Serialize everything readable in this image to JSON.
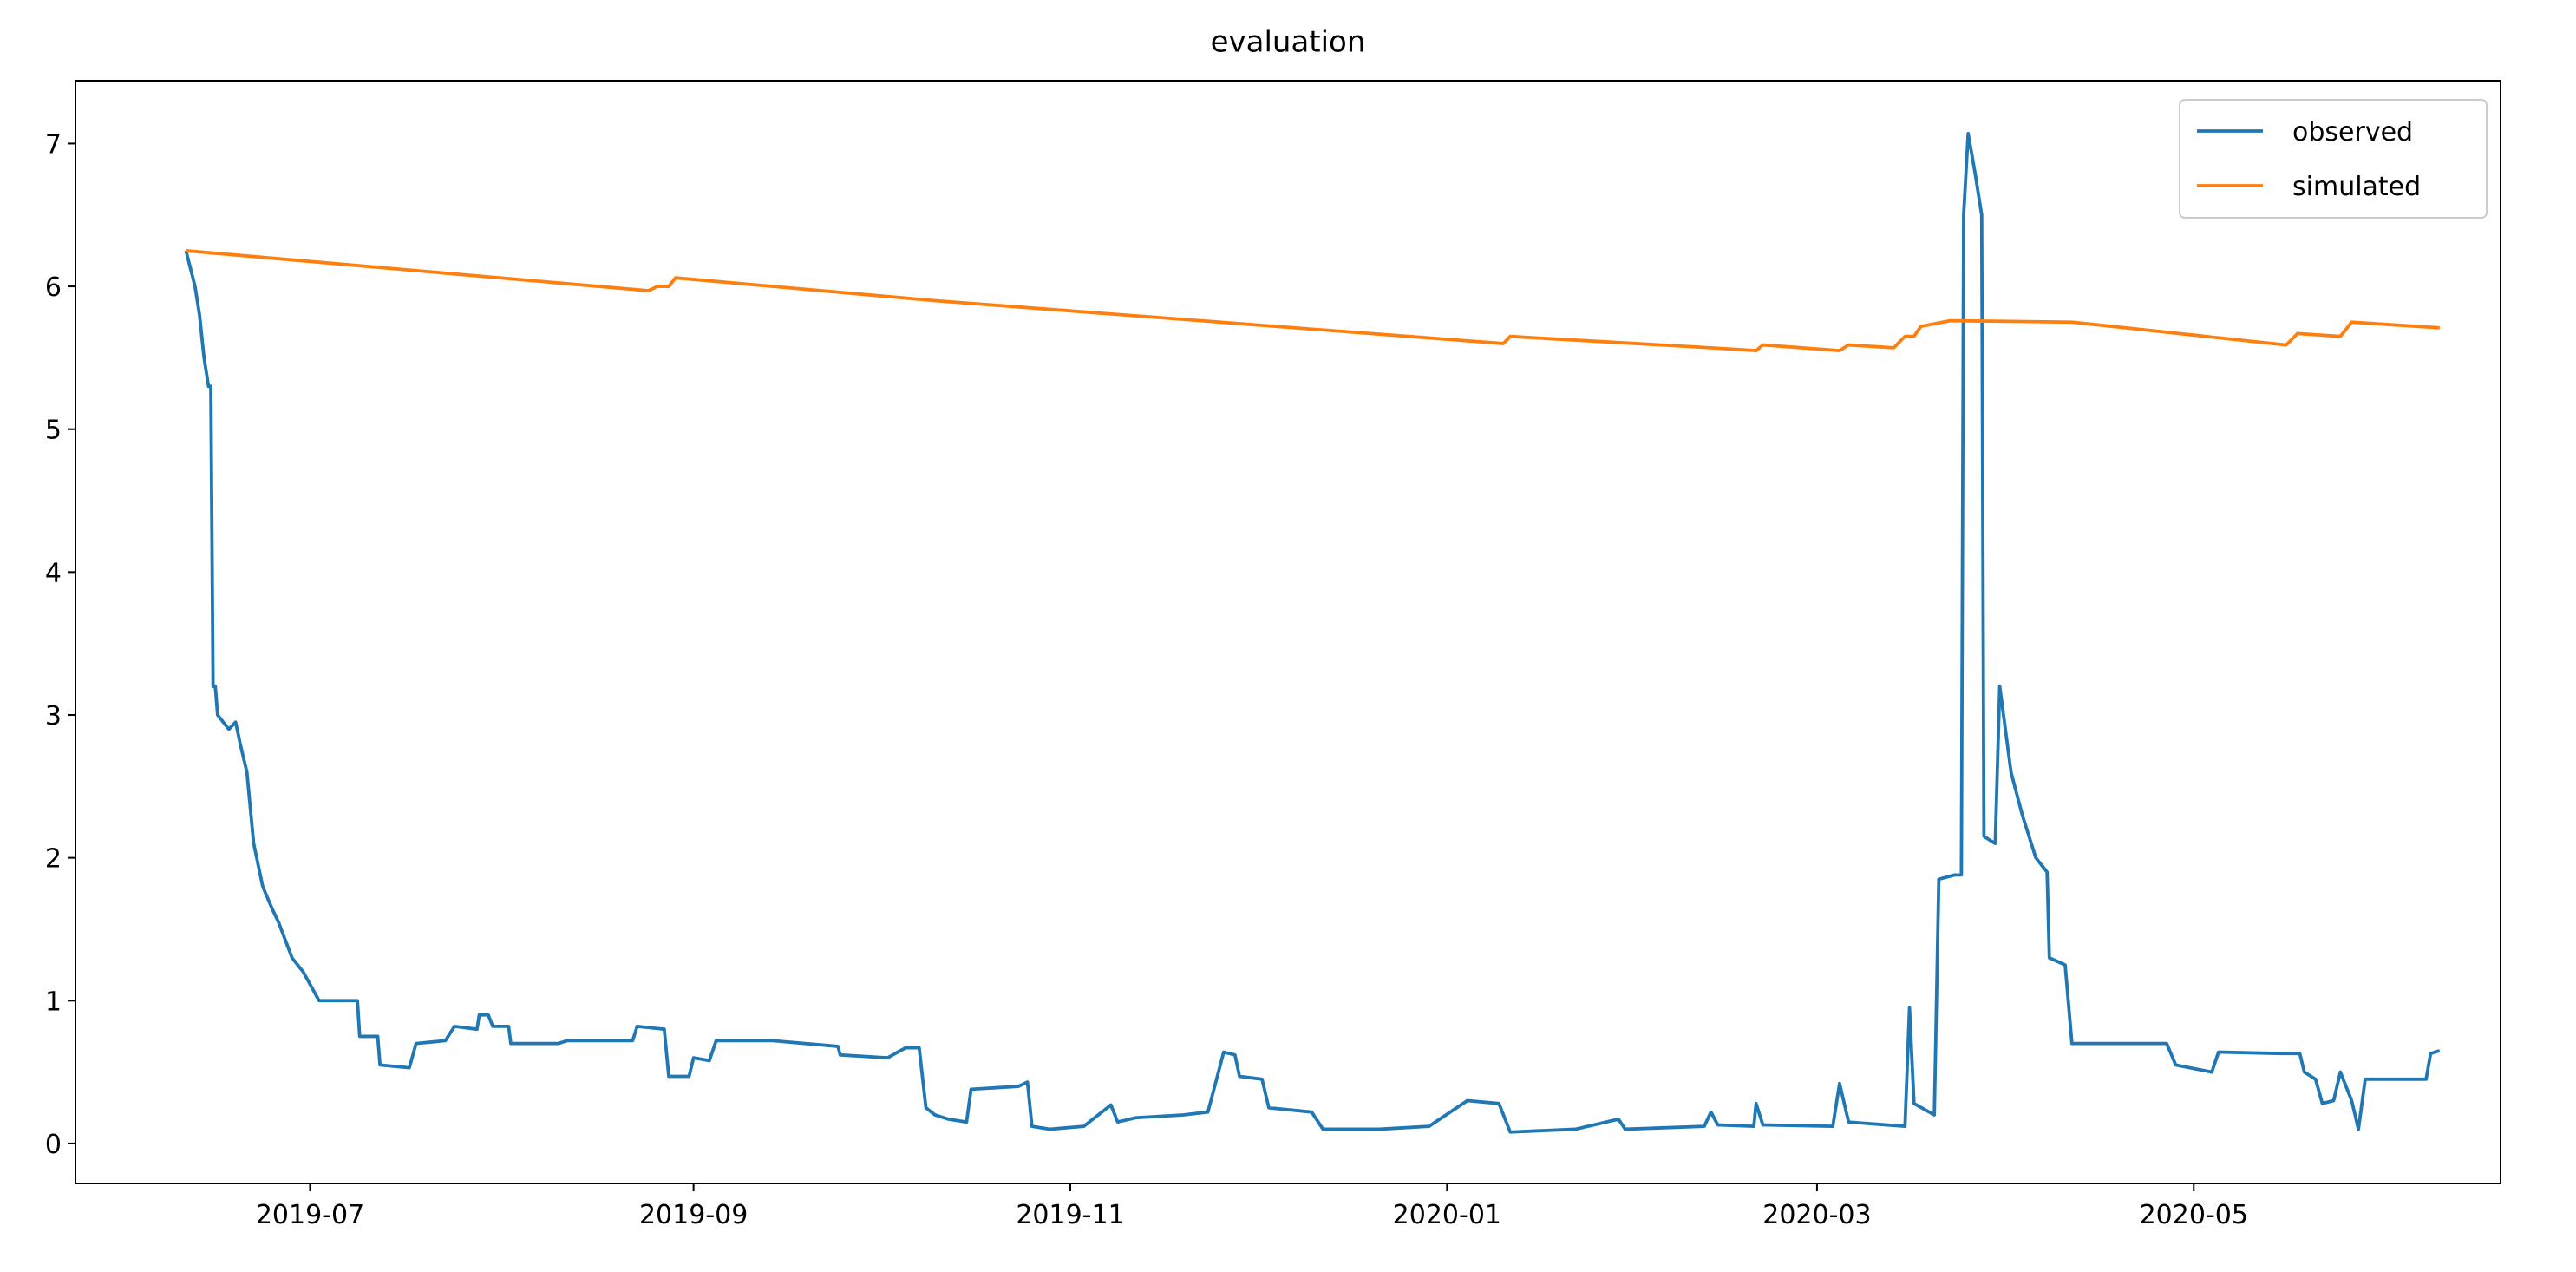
{
  "chart_data": {
    "type": "line",
    "title": "evaluation",
    "xlim": [
      2019.392,
      2020.467
    ],
    "ylim": [
      -0.28,
      7.44
    ],
    "xticks": [
      {
        "value": 2019.496,
        "label": "2019-07"
      },
      {
        "value": 2019.666,
        "label": "2019-09"
      },
      {
        "value": 2019.833,
        "label": "2019-11"
      },
      {
        "value": 2020.0,
        "label": "2020-01"
      },
      {
        "value": 2020.164,
        "label": "2020-03"
      },
      {
        "value": 2020.331,
        "label": "2020-05"
      }
    ],
    "yticks": [
      0,
      1,
      2,
      3,
      4,
      5,
      6,
      7
    ],
    "grid": false,
    "legend": "upper right",
    "series": [
      {
        "name": "observed",
        "color": "#1f77b4",
        "x": [
          2019.441,
          2019.445,
          2019.447,
          2019.449,
          2019.451,
          2019.452,
          2019.453,
          2019.454,
          2019.455,
          2019.46,
          2019.463,
          2019.465,
          2019.468,
          2019.471,
          2019.475,
          2019.479,
          2019.482,
          2019.488,
          2019.493,
          2019.5,
          2019.517,
          2019.518,
          2019.526,
          2019.527,
          2019.54,
          2019.543,
          2019.556,
          2019.56,
          2019.57,
          2019.571,
          2019.575,
          2019.577,
          2019.584,
          2019.585,
          2019.606,
          2019.61,
          2019.639,
          2019.641,
          2019.653,
          2019.655,
          2019.664,
          2019.666,
          2019.673,
          2019.676,
          2019.701,
          2019.73,
          2019.731,
          2019.752,
          2019.76,
          2019.766,
          2019.769,
          2019.773,
          2019.779,
          2019.787,
          2019.789,
          2019.81,
          2019.814,
          2019.816,
          2019.824,
          2019.839,
          2019.851,
          2019.854,
          2019.862,
          2019.883,
          2019.894,
          2019.901,
          2019.906,
          2019.908,
          2019.918,
          2019.921,
          2019.94,
          2019.945,
          2019.97,
          2019.992,
          2020.009,
          2020.023,
          2020.028,
          2020.057,
          2020.076,
          2020.079,
          2020.114,
          2020.117,
          2020.12,
          2020.136,
          2020.137,
          2020.14,
          2020.171,
          2020.174,
          2020.178,
          2020.203,
          2020.205,
          2020.207,
          2020.216,
          2020.218,
          2020.225,
          2020.228,
          2020.229,
          2020.231,
          2020.234,
          2020.237,
          2020.238,
          2020.243,
          2020.245,
          2020.25,
          2020.255,
          2020.261,
          2020.266,
          2020.267,
          2020.274,
          2020.277,
          2020.319,
          2020.323,
          2020.339,
          2020.342,
          2020.37,
          2020.378,
          2020.38,
          2020.385,
          2020.388,
          2020.393,
          2020.396,
          2020.401,
          2020.404,
          2020.407,
          2020.434,
          2020.436,
          2020.44
        ],
        "values": [
          6.25,
          6.0,
          5.8,
          5.5,
          5.3,
          5.3,
          3.2,
          3.2,
          3.0,
          2.9,
          2.95,
          2.8,
          2.6,
          2.1,
          1.8,
          1.65,
          1.55,
          1.3,
          1.2,
          1.0,
          1.0,
          0.75,
          0.75,
          0.55,
          0.53,
          0.7,
          0.72,
          0.82,
          0.8,
          0.9,
          0.9,
          0.82,
          0.82,
          0.7,
          0.7,
          0.72,
          0.72,
          0.82,
          0.8,
          0.47,
          0.47,
          0.6,
          0.58,
          0.72,
          0.72,
          0.68,
          0.62,
          0.6,
          0.67,
          0.67,
          0.25,
          0.2,
          0.17,
          0.15,
          0.38,
          0.4,
          0.43,
          0.12,
          0.1,
          0.12,
          0.27,
          0.15,
          0.18,
          0.2,
          0.22,
          0.64,
          0.62,
          0.47,
          0.45,
          0.25,
          0.22,
          0.1,
          0.1,
          0.12,
          0.3,
          0.28,
          0.08,
          0.1,
          0.17,
          0.1,
          0.12,
          0.22,
          0.13,
          0.12,
          0.28,
          0.13,
          0.12,
          0.42,
          0.15,
          0.12,
          0.95,
          0.28,
          0.2,
          1.85,
          1.88,
          1.88,
          6.5,
          7.07,
          6.8,
          6.5,
          2.15,
          2.1,
          3.2,
          2.6,
          2.3,
          2.0,
          1.9,
          1.3,
          1.25,
          0.7,
          0.7,
          0.55,
          0.5,
          0.64,
          0.63,
          0.63,
          0.5,
          0.45,
          0.28,
          0.3,
          0.5,
          0.3,
          0.1,
          0.45,
          0.45,
          0.63,
          0.65
        ]
      },
      {
        "name": "simulated",
        "color": "#ff7f0e",
        "x": [
          2019.441,
          2019.646,
          2019.65,
          2019.655,
          2019.658,
          2019.773,
          2020.025,
          2020.028,
          2020.117,
          2020.137,
          2020.14,
          2020.174,
          2020.178,
          2020.198,
          2020.203,
          2020.207,
          2020.21,
          2020.223,
          2020.277,
          2020.372,
          2020.377,
          2020.396,
          2020.401,
          2020.44
        ],
        "values": [
          6.25,
          5.97,
          6.0,
          6.0,
          6.06,
          5.9,
          5.6,
          5.65,
          5.57,
          5.55,
          5.59,
          5.55,
          5.59,
          5.57,
          5.65,
          5.65,
          5.72,
          5.76,
          5.75,
          5.59,
          5.67,
          5.65,
          5.75,
          5.71
        ]
      }
    ]
  }
}
